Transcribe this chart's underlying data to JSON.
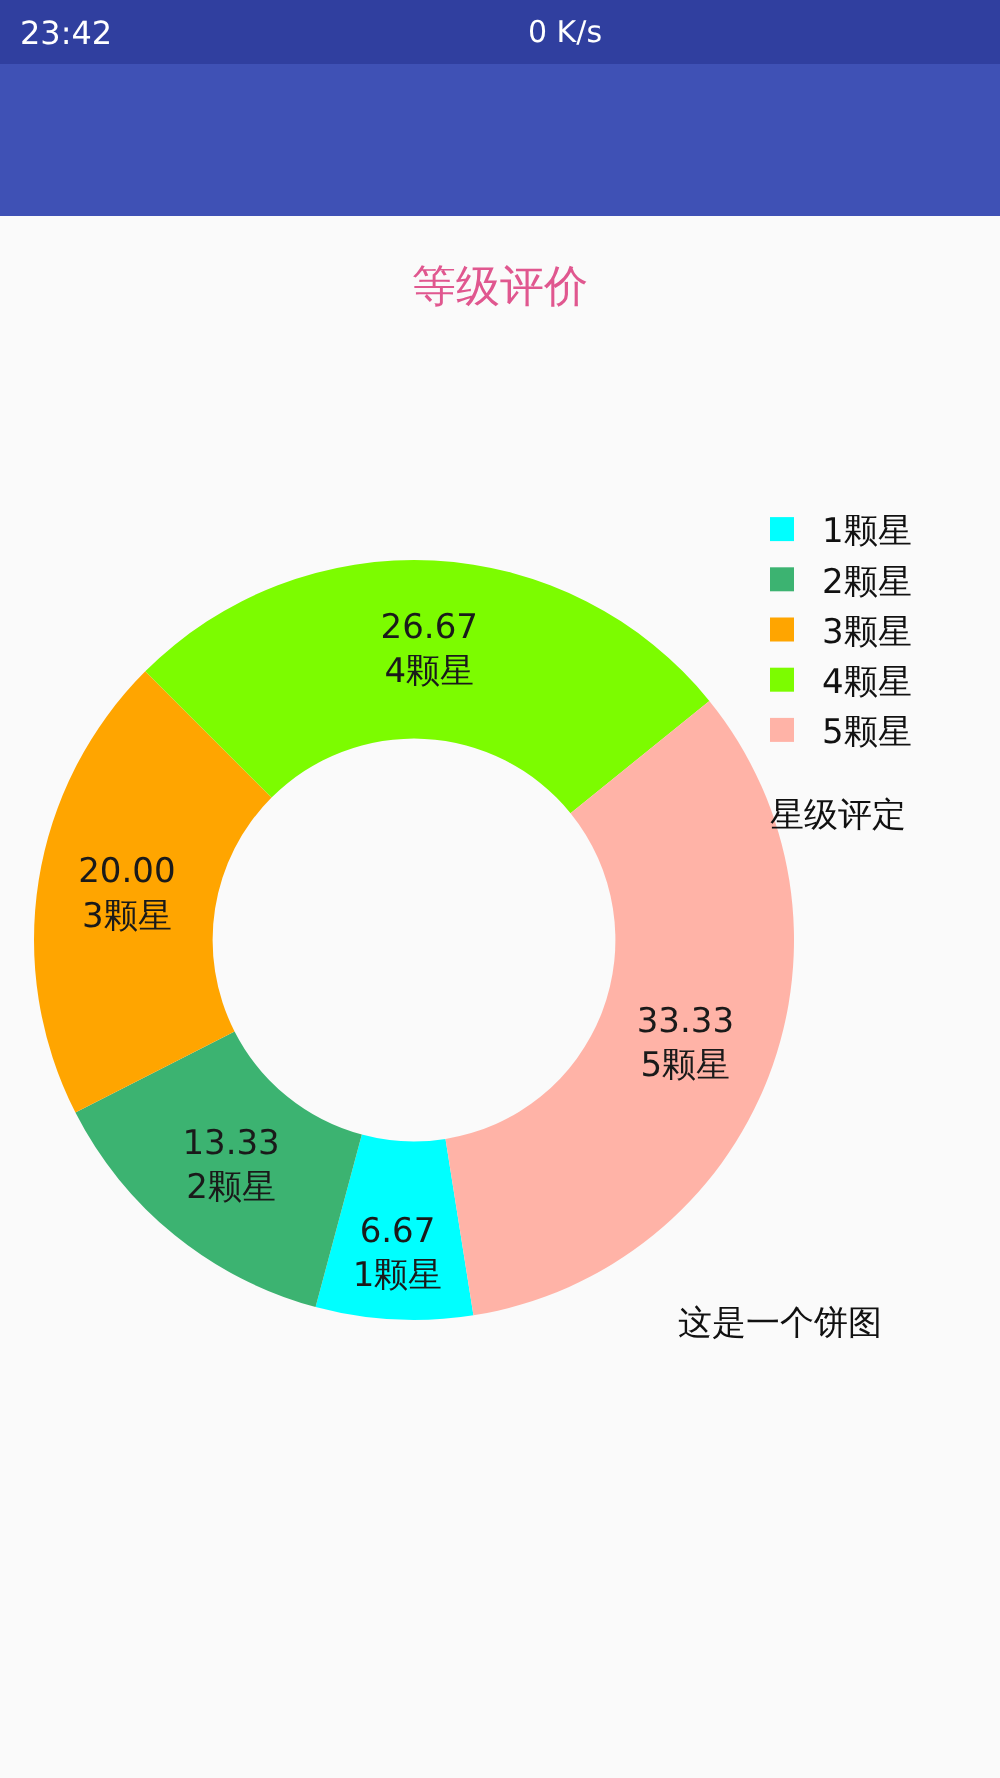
{
  "chart_data": {
    "type": "donut",
    "title": "等级评价",
    "categories": [
      "1颗星",
      "2颗星",
      "3颗星",
      "4颗星",
      "5颗星"
    ],
    "values": [
      6.67,
      13.33,
      20.0,
      26.67,
      33.33
    ],
    "value_labels": [
      "6.67",
      "13.33",
      "20.00",
      "26.67",
      "33.33"
    ],
    "colors": [
      "#00ffff",
      "#3cb371",
      "#ffa500",
      "#7cfc00",
      "#ffb3a7"
    ],
    "legend": "top right",
    "legend_title": "星级评定",
    "annotations": [
      "23:42",
      "0 K/s",
      "这是一个饼图"
    ]
  }
}
